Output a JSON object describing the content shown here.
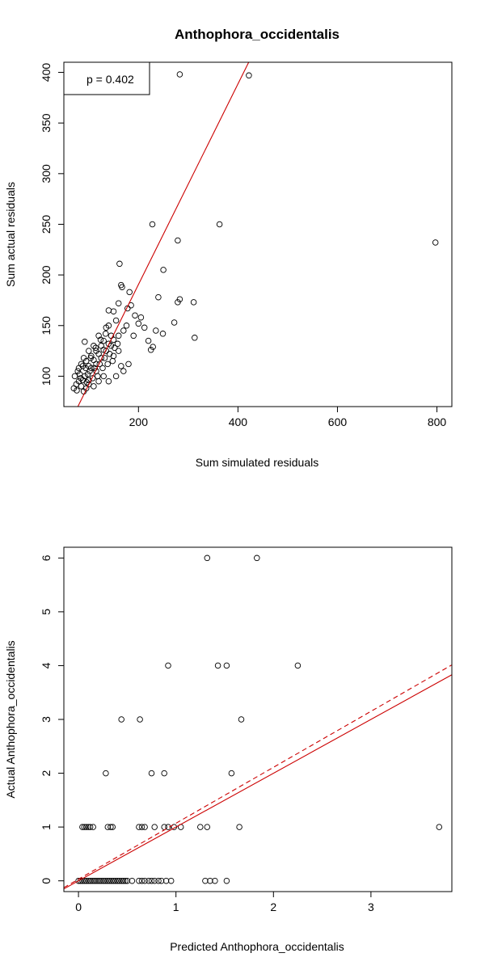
{
  "chart_data": [
    {
      "type": "scatter",
      "title": "Anthophora_occidentalis",
      "xlabel": "Sum simulated residuals",
      "ylabel": "Sum actual residuals",
      "xlim": [
        50,
        830
      ],
      "ylim": [
        70,
        410
      ],
      "xticks": [
        200,
        400,
        600,
        800
      ],
      "yticks": [
        100,
        150,
        200,
        250,
        300,
        350,
        400
      ],
      "grid": false,
      "legend": {
        "text": "p = 0.402",
        "position": "top-left"
      },
      "fit_lines": [
        {
          "style": "solid",
          "color": "#cc0000",
          "intercept": -7.4,
          "slope": 0.99
        }
      ],
      "points": [
        [
          283,
          398
        ],
        [
          422,
          397
        ],
        [
          228,
          250
        ],
        [
          363,
          250
        ],
        [
          279,
          234
        ],
        [
          797,
          232
        ],
        [
          162,
          211
        ],
        [
          250,
          205
        ],
        [
          165,
          190
        ],
        [
          182,
          183
        ],
        [
          167,
          188
        ],
        [
          279,
          173
        ],
        [
          283,
          176
        ],
        [
          311,
          173
        ],
        [
          240,
          178
        ],
        [
          272,
          153
        ],
        [
          313,
          138
        ],
        [
          235,
          145
        ],
        [
          249,
          142
        ],
        [
          229,
          129
        ],
        [
          212,
          148
        ],
        [
          205,
          158
        ],
        [
          193,
          160
        ],
        [
          185,
          170
        ],
        [
          178,
          167
        ],
        [
          200,
          152
        ],
        [
          220,
          135
        ],
        [
          225,
          126
        ],
        [
          190,
          140
        ],
        [
          176,
          150
        ],
        [
          170,
          145
        ],
        [
          150,
          164
        ],
        [
          140,
          150
        ],
        [
          160,
          172
        ],
        [
          140,
          165
        ],
        [
          155,
          155
        ],
        [
          135,
          148
        ],
        [
          145,
          140
        ],
        [
          150,
          120
        ],
        [
          160,
          125
        ],
        [
          165,
          110
        ],
        [
          170,
          105
        ],
        [
          180,
          112
        ],
        [
          155,
          100
        ],
        [
          140,
          95
        ],
        [
          130,
          100
        ],
        [
          120,
          95
        ],
        [
          110,
          90
        ],
        [
          100,
          92
        ],
        [
          95,
          88
        ],
        [
          90,
          85
        ],
        [
          85,
          90
        ],
        [
          80,
          95
        ],
        [
          75,
          92
        ],
        [
          72,
          100
        ],
        [
          78,
          105
        ],
        [
          88,
          110
        ],
        [
          95,
          115
        ],
        [
          105,
          120
        ],
        [
          115,
          125
        ],
        [
          125,
          130
        ],
        [
          130,
          135
        ],
        [
          120,
          140
        ],
        [
          110,
          130
        ],
        [
          100,
          125
        ],
        [
          90,
          118
        ],
        [
          85,
          112
        ],
        [
          82,
          102
        ],
        [
          92,
          100
        ],
        [
          102,
          105
        ],
        [
          112,
          108
        ],
        [
          122,
          112
        ],
        [
          132,
          118
        ],
        [
          142,
          122
        ],
        [
          152,
          128
        ],
        [
          158,
          132
        ],
        [
          145,
          130
        ],
        [
          135,
          125
        ],
        [
          125,
          118
        ],
        [
          115,
          112
        ],
        [
          105,
          108
        ],
        [
          98,
          102
        ],
        [
          88,
          96
        ],
        [
          70,
          88
        ],
        [
          76,
          86
        ],
        [
          92,
          134
        ],
        [
          115,
          105
        ],
        [
          128,
          108
        ],
        [
          138,
          112
        ],
        [
          148,
          115
        ],
        [
          118,
          100
        ],
        [
          108,
          98
        ],
        [
          100,
          96
        ],
        [
          96,
          94
        ],
        [
          84,
          98
        ],
        [
          80,
          108
        ],
        [
          100,
          110
        ],
        [
          110,
          116
        ],
        [
          120,
          122
        ],
        [
          130,
          126
        ],
        [
          140,
          132
        ],
        [
          150,
          136
        ],
        [
          160,
          140
        ],
        [
          134,
          142
        ],
        [
          124,
          136
        ],
        [
          114,
          128
        ],
        [
          104,
          118
        ],
        [
          94,
          108
        ]
      ]
    },
    {
      "type": "scatter",
      "title": "",
      "xlabel": "Predicted Anthophora_occidentalis",
      "ylabel": "Actual Anthophora_occidentalis",
      "xlim": [
        -0.15,
        3.83
      ],
      "ylim": [
        -0.2,
        6.2
      ],
      "xticks": [
        0,
        1,
        2,
        3
      ],
      "yticks": [
        0,
        1,
        2,
        3,
        4,
        5,
        6
      ],
      "grid": false,
      "fit_lines": [
        {
          "style": "solid",
          "color": "#cc0000",
          "intercept": 0.0,
          "slope": 1.0
        },
        {
          "style": "dashed",
          "color": "#cc0000",
          "intercept": 0.03,
          "slope": 1.04
        }
      ],
      "points": [
        [
          0.0,
          0
        ],
        [
          0.02,
          0
        ],
        [
          0.04,
          0
        ],
        [
          0.06,
          0
        ],
        [
          0.08,
          0
        ],
        [
          0.1,
          0
        ],
        [
          0.12,
          0
        ],
        [
          0.14,
          0
        ],
        [
          0.16,
          0
        ],
        [
          0.18,
          0
        ],
        [
          0.2,
          0
        ],
        [
          0.22,
          0
        ],
        [
          0.24,
          0
        ],
        [
          0.26,
          0
        ],
        [
          0.28,
          0
        ],
        [
          0.3,
          0
        ],
        [
          0.32,
          0
        ],
        [
          0.34,
          0
        ],
        [
          0.36,
          0
        ],
        [
          0.38,
          0
        ],
        [
          0.4,
          0
        ],
        [
          0.42,
          0
        ],
        [
          0.44,
          0
        ],
        [
          0.46,
          0
        ],
        [
          0.48,
          0
        ],
        [
          0.5,
          0
        ],
        [
          0.55,
          0
        ],
        [
          0.62,
          0
        ],
        [
          0.65,
          0
        ],
        [
          0.68,
          0
        ],
        [
          0.72,
          0
        ],
        [
          0.75,
          0
        ],
        [
          0.78,
          0
        ],
        [
          0.82,
          0
        ],
        [
          0.85,
          0
        ],
        [
          0.9,
          0
        ],
        [
          0.95,
          0
        ],
        [
          1.3,
          0
        ],
        [
          1.35,
          0
        ],
        [
          1.4,
          0
        ],
        [
          1.52,
          0
        ],
        [
          0.04,
          1
        ],
        [
          0.06,
          1
        ],
        [
          0.08,
          1
        ],
        [
          0.1,
          1
        ],
        [
          0.12,
          1
        ],
        [
          0.15,
          1
        ],
        [
          0.3,
          1
        ],
        [
          0.33,
          1
        ],
        [
          0.35,
          1
        ],
        [
          0.62,
          1
        ],
        [
          0.65,
          1
        ],
        [
          0.68,
          1
        ],
        [
          0.78,
          1
        ],
        [
          0.88,
          1
        ],
        [
          0.92,
          1
        ],
        [
          0.98,
          1
        ],
        [
          1.05,
          1
        ],
        [
          1.25,
          1
        ],
        [
          1.32,
          1
        ],
        [
          1.65,
          1
        ],
        [
          3.7,
          1
        ],
        [
          0.28,
          2
        ],
        [
          0.75,
          2
        ],
        [
          0.88,
          2
        ],
        [
          1.57,
          2
        ],
        [
          0.44,
          3
        ],
        [
          0.63,
          3
        ],
        [
          1.67,
          3
        ],
        [
          0.92,
          4
        ],
        [
          1.43,
          4
        ],
        [
          1.52,
          4
        ],
        [
          2.25,
          4
        ],
        [
          1.32,
          6
        ],
        [
          1.83,
          6
        ]
      ]
    }
  ]
}
